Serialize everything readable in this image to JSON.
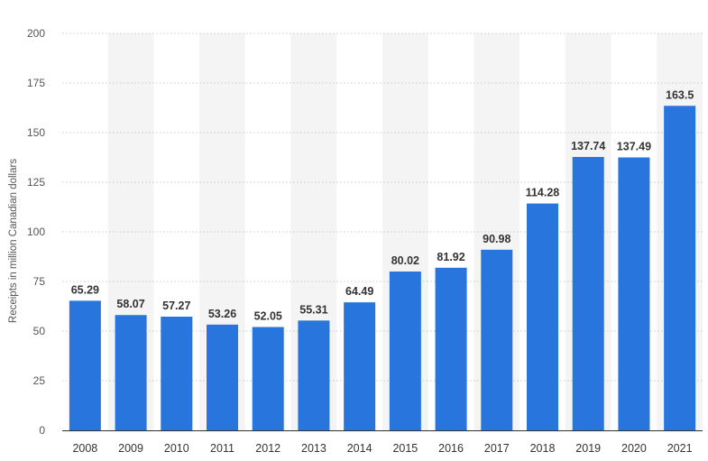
{
  "chart_data": {
    "type": "bar",
    "title": "",
    "xlabel": "",
    "ylabel": "Receipts in million Canadian dollars",
    "ylim": [
      0,
      200
    ],
    "yticks": [
      0,
      25,
      50,
      75,
      100,
      125,
      150,
      175,
      200
    ],
    "grid": true,
    "legend": "none",
    "categories": [
      "2008",
      "2009",
      "2010",
      "2011",
      "2012",
      "2013",
      "2014",
      "2015",
      "2016",
      "2017",
      "2018",
      "2019",
      "2020",
      "2021"
    ],
    "values": [
      65.29,
      58.07,
      57.27,
      53.26,
      52.05,
      55.31,
      64.49,
      80.02,
      81.92,
      90.98,
      114.28,
      137.74,
      137.49,
      163.5
    ],
    "value_labels": [
      "65.29",
      "58.07",
      "57.27",
      "53.26",
      "52.05",
      "55.31",
      "64.49",
      "80.02",
      "81.92",
      "90.98",
      "114.28",
      "137.74",
      "137.49",
      "163.5"
    ],
    "colors": {
      "bar": "#2775dd",
      "band": "#f4f4f4",
      "grid": "#c9c9c9",
      "axis": "#333333"
    }
  }
}
